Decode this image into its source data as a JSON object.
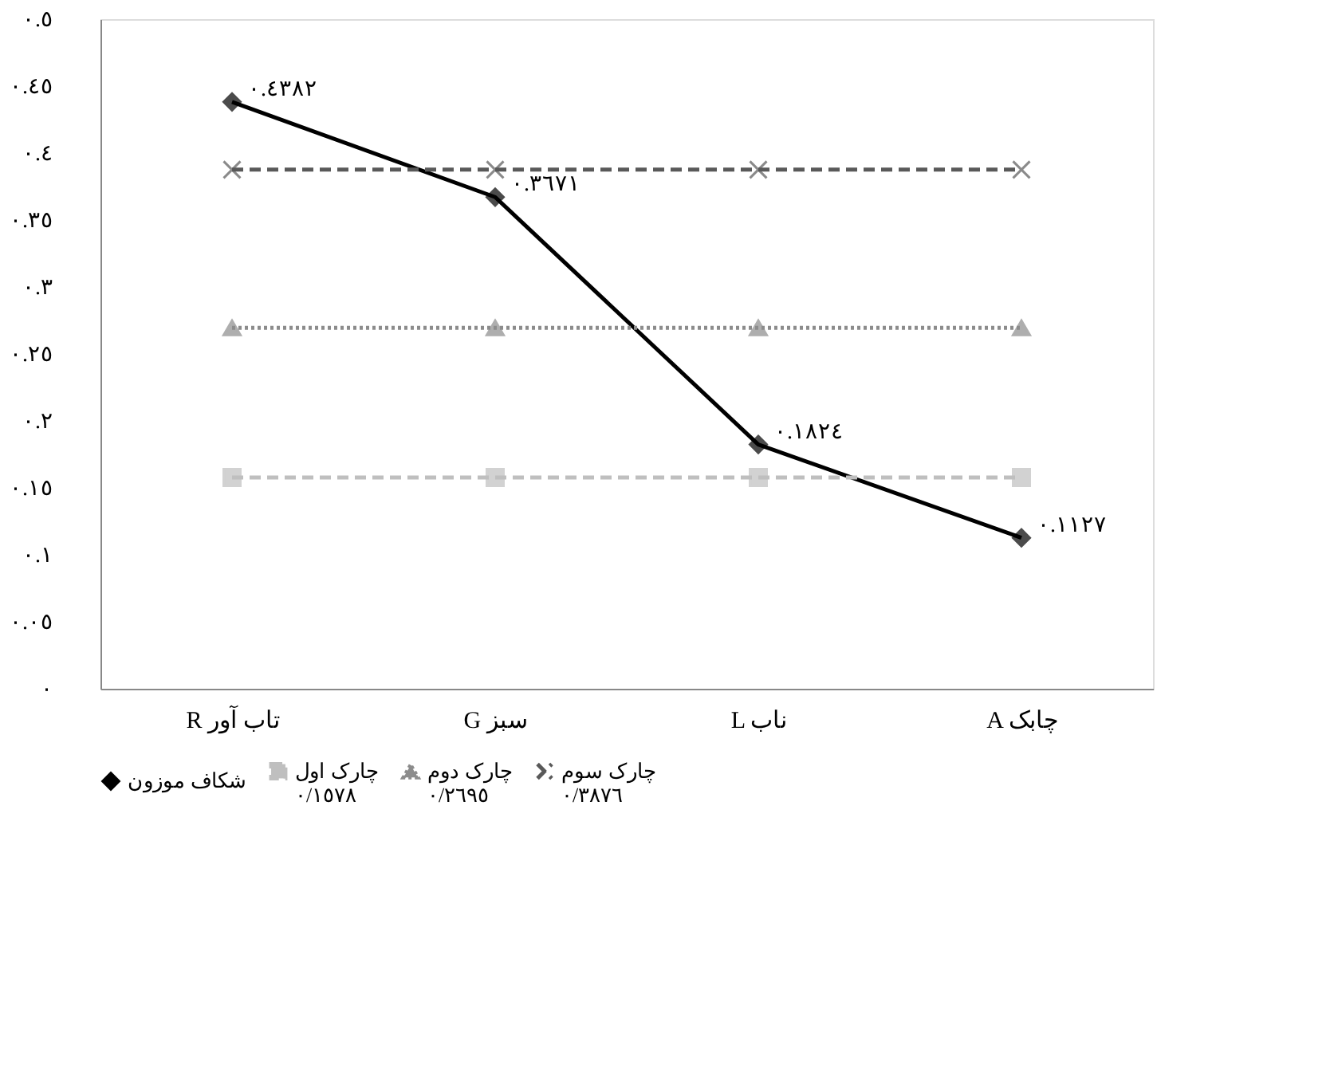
{
  "chart_data": {
    "type": "line",
    "categories": [
      "R تاب آور",
      "G سبز",
      "L ناب",
      "A چابک"
    ],
    "series": [
      {
        "name": "شکاف موزون",
        "color": "#000000",
        "marker": "diamond",
        "line_style": "solid",
        "values": [
          0.4382,
          0.3671,
          0.1824,
          0.1127
        ],
        "value_labels": [
          "٠.٤٣٨٢",
          "٠.٣٦٧١",
          "٠.١٨٢٤",
          "٠.١١٢٧"
        ]
      },
      {
        "name": "چارک اول\n٠/١٥٧٨",
        "color": "#bfbfbf",
        "marker": "square",
        "line_style": "dashed",
        "values": [
          0.1578,
          0.1578,
          0.1578,
          0.1578
        ]
      },
      {
        "name": "چارک دوم\n٠/٢٦٩٥",
        "color": "#8c8c8c",
        "marker": "triangle",
        "line_style": "dotted",
        "values": [
          0.2695,
          0.2695,
          0.2695,
          0.2695
        ]
      },
      {
        "name": "چارک سوم\n٠/٣٨٧٦",
        "color": "#595959",
        "marker": "cross",
        "line_style": "dashed",
        "values": [
          0.3876,
          0.3876,
          0.3876,
          0.3876
        ]
      }
    ],
    "ylim": [
      0,
      0.5
    ],
    "yticks": [
      {
        "value": 0,
        "label": "٠"
      },
      {
        "value": 0.05,
        "label": "٠.٠٥"
      },
      {
        "value": 0.1,
        "label": "٠.١"
      },
      {
        "value": 0.15,
        "label": "٠.١٥"
      },
      {
        "value": 0.2,
        "label": "٠.٢"
      },
      {
        "value": 0.25,
        "label": "٠.٢٥"
      },
      {
        "value": 0.3,
        "label": "٠.٣"
      },
      {
        "value": 0.35,
        "label": "٠.٣٥"
      },
      {
        "value": 0.4,
        "label": "٠.٤"
      },
      {
        "value": 0.45,
        "label": "٠.٤٥"
      },
      {
        "value": 0.5,
        "label": "٠.٥"
      }
    ],
    "grid": false,
    "legend": "bottom"
  }
}
